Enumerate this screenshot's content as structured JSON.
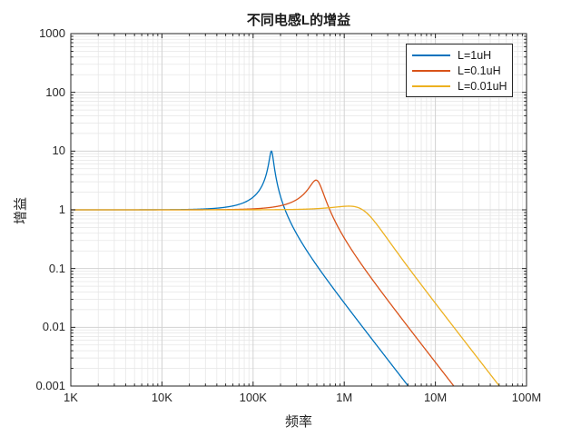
{
  "figure": {
    "background": "#ffffff"
  },
  "chart_data": {
    "type": "line",
    "title": "不同电感L的增益",
    "xlabel": "频率",
    "ylabel": "增益",
    "x_scale": "log",
    "y_scale": "log",
    "x_range_hz": [
      1000,
      100000000
    ],
    "y_range": [
      0.001,
      1000
    ],
    "x_tick_labels": [
      "1K",
      "10K",
      "100K",
      "1M",
      "10M",
      "100M"
    ],
    "x_tick_log10": [
      3,
      4,
      5,
      6,
      7,
      8
    ],
    "y_tick_labels": [
      "1000",
      "100",
      "10",
      "1",
      "0.1",
      "0.01",
      "0.001"
    ],
    "y_tick_log10": [
      3,
      2,
      1,
      0,
      -1,
      -2,
      -3
    ],
    "grid": "major+minor",
    "legend_position": "top-right-inside",
    "model": "series RLC low-pass gain |H(f)| = 1/sqrt((1-(2*pi*f)^2*L*C)^2 + ((2*pi*f)*R*C)^2)",
    "params": {
      "R_ohm": 0.1,
      "C_farad": 1e-06
    },
    "series": [
      {
        "name": "L=1uH",
        "L_henry": 1e-06,
        "color": "#0072BD",
        "f0_hz": 159155,
        "peak_gain": 10.01,
        "low_freq_gain": 1,
        "falls_to_0p001_at_hz": 5030000
      },
      {
        "name": "L=0.1uH",
        "L_henry": 1e-07,
        "color": "#D95319",
        "f0_hz": 503292,
        "peak_gain": 3.2,
        "low_freq_gain": 1,
        "falls_to_0p001_at_hz": 15900000
      },
      {
        "name": "L=0.01uH",
        "L_henry": 1e-08,
        "color": "#EDB120",
        "f0_hz": 1591549,
        "peak_gain": 1.15,
        "low_freq_gain": 1,
        "falls_to_0p001_at_hz": 50300000
      }
    ]
  },
  "colors": {
    "axis_box": "#262626",
    "tick_mark": "#262626",
    "grid_major": "#d2d2d2",
    "grid_minor": "#e6e6e6",
    "text": "#262626",
    "legend_border": "#262626",
    "legend_background": "#ffffff"
  }
}
